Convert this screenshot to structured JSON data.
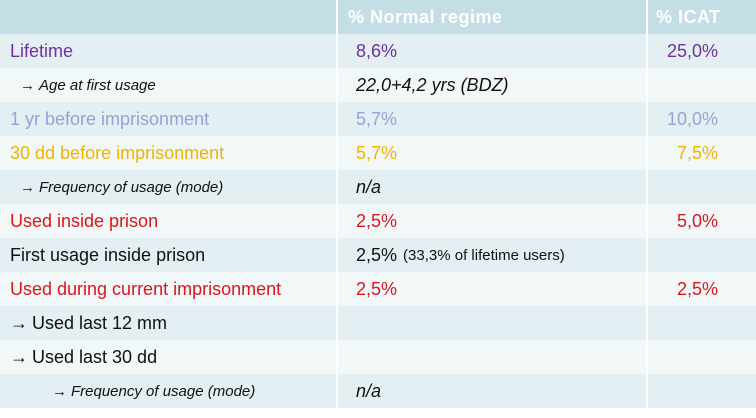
{
  "header": {
    "col1": "",
    "col2": "% Normal regime",
    "col3": "% ICAT"
  },
  "rows": [
    {
      "label": "Lifetime",
      "normal": "8,6%",
      "icat": "25,0%"
    },
    {
      "arrow": "→",
      "label": "Age at first usage",
      "normal": "22,0+4,2 yrs (BDZ)",
      "icat": ""
    },
    {
      "label": "1 yr before imprisonment",
      "normal": "5,7%",
      "icat": "10,0%"
    },
    {
      "label": "30 dd before imprisonment",
      "normal": "5,7%",
      "icat": "7,5%"
    },
    {
      "arrow": "→",
      "label": "Frequency of usage (mode)",
      "normal": "n/a",
      "icat": ""
    },
    {
      "label": "Used inside prison",
      "normal": "2,5%",
      "icat": "5,0%"
    },
    {
      "label": "First usage inside prison",
      "normal": "2,5%",
      "normal_note": "(33,3% of lifetime users)",
      "icat": ""
    },
    {
      "label": "Used during current imprisonment",
      "normal": "2,5%",
      "icat": "2,5%"
    },
    {
      "arrow": "→",
      "label": "Used last 12 mm",
      "normal": "",
      "icat": ""
    },
    {
      "arrow": "→",
      "label": "Used last 30 dd",
      "normal": "",
      "icat": ""
    },
    {
      "arrow": "→",
      "label": "Frequency of usage (mode)",
      "normal": "n/a",
      "icat": ""
    }
  ],
  "colors": {
    "header_bg": "#c3dee4",
    "shade_bg": "#e3eff2",
    "plain_bg": "#f2f7f8",
    "purple": "#7030a0",
    "lavender": "#9aa0d8",
    "gold": "#f0b400",
    "red": "#d9171e"
  }
}
